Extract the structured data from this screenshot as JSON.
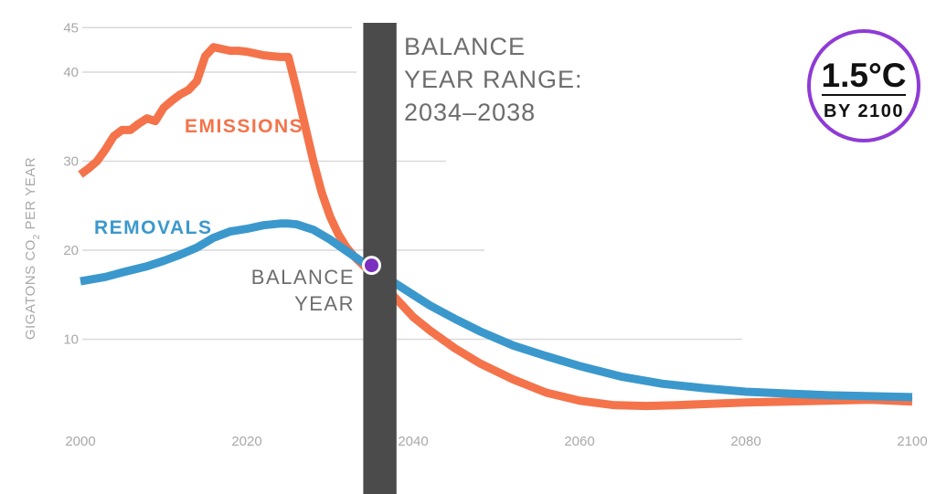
{
  "chart_data": {
    "type": "line",
    "ylabel": "GIGATONS CO",
    "ylabel_sub": "2",
    "ylabel_suffix": " PER YEAR",
    "xlim": [
      2000,
      2100
    ],
    "ylim": [
      0,
      45
    ],
    "x_ticks": [
      2000,
      2020,
      2040,
      2060,
      2080,
      2100
    ],
    "y_ticks": [
      10,
      20,
      30,
      40,
      45
    ],
    "grid": "horizontal",
    "series": [
      {
        "name": "EMISSIONS",
        "color": "#f4734a",
        "points": [
          [
            2000,
            28.5
          ],
          [
            2001,
            29.2
          ],
          [
            2002,
            30.0
          ],
          [
            2003,
            31.3
          ],
          [
            2004,
            32.8
          ],
          [
            2005,
            33.5
          ],
          [
            2006,
            33.5
          ],
          [
            2007,
            34.2
          ],
          [
            2008,
            34.8
          ],
          [
            2009,
            34.5
          ],
          [
            2010,
            36.0
          ],
          [
            2011,
            36.8
          ],
          [
            2012,
            37.5
          ],
          [
            2013,
            38.0
          ],
          [
            2014,
            39.0
          ],
          [
            2015,
            41.8
          ],
          [
            2016,
            42.8
          ],
          [
            2017,
            42.6
          ],
          [
            2018,
            42.4
          ],
          [
            2019,
            42.4
          ],
          [
            2020,
            42.3
          ],
          [
            2021,
            42.1
          ],
          [
            2022,
            41.9
          ],
          [
            2023,
            41.8
          ],
          [
            2024,
            41.7
          ],
          [
            2025,
            41.7
          ],
          [
            2026,
            38.0
          ],
          [
            2027,
            34.0
          ],
          [
            2028,
            30.0
          ],
          [
            2029,
            26.5
          ],
          [
            2030,
            23.8
          ],
          [
            2031,
            21.8
          ],
          [
            2032,
            20.3
          ],
          [
            2033,
            19.2
          ],
          [
            2034,
            18.3
          ],
          [
            2035,
            17.5
          ],
          [
            2036,
            16.5
          ],
          [
            2038,
            14.5
          ],
          [
            2040,
            12.5
          ],
          [
            2042,
            11.0
          ],
          [
            2045,
            9.0
          ],
          [
            2048,
            7.3
          ],
          [
            2052,
            5.5
          ],
          [
            2056,
            4.0
          ],
          [
            2060,
            3.1
          ],
          [
            2064,
            2.6
          ],
          [
            2068,
            2.5
          ],
          [
            2072,
            2.6
          ],
          [
            2080,
            2.9
          ],
          [
            2090,
            3.1
          ],
          [
            2095,
            3.2
          ],
          [
            2100,
            3.0
          ]
        ]
      },
      {
        "name": "REMOVALS",
        "color": "#3b98cc",
        "points": [
          [
            2000,
            16.5
          ],
          [
            2003,
            17.0
          ],
          [
            2005,
            17.5
          ],
          [
            2008,
            18.2
          ],
          [
            2010,
            18.8
          ],
          [
            2012,
            19.5
          ],
          [
            2014,
            20.3
          ],
          [
            2016,
            21.4
          ],
          [
            2018,
            22.1
          ],
          [
            2020,
            22.4
          ],
          [
            2022,
            22.8
          ],
          [
            2024,
            23.0
          ],
          [
            2025,
            23.0
          ],
          [
            2026,
            22.9
          ],
          [
            2028,
            22.3
          ],
          [
            2030,
            21.2
          ],
          [
            2032,
            19.9
          ],
          [
            2034,
            18.6
          ],
          [
            2036,
            17.4
          ],
          [
            2038,
            16.2
          ],
          [
            2040,
            15.0
          ],
          [
            2042,
            13.8
          ],
          [
            2045,
            12.3
          ],
          [
            2048,
            10.9
          ],
          [
            2052,
            9.3
          ],
          [
            2056,
            8.1
          ],
          [
            2060,
            7.0
          ],
          [
            2065,
            5.8
          ],
          [
            2070,
            5.0
          ],
          [
            2075,
            4.5
          ],
          [
            2080,
            4.1
          ],
          [
            2085,
            3.9
          ],
          [
            2090,
            3.7
          ],
          [
            2095,
            3.6
          ],
          [
            2100,
            3.5
          ]
        ]
      }
    ],
    "balance_year": {
      "x": 2035,
      "y": 18.3,
      "label_line1": "BALANCE",
      "label_line2": "YEAR"
    },
    "balance_range": {
      "start": 2034,
      "end": 2038
    },
    "range_label": [
      "BALANCE",
      "YEAR RANGE:",
      "2034–2038"
    ],
    "marker_color": "#7b2fbf",
    "band_color": "#4b4b4b"
  },
  "badge": {
    "main": "1.5°C",
    "sub": "BY 2100",
    "ring_color": "#8e3bd6"
  }
}
